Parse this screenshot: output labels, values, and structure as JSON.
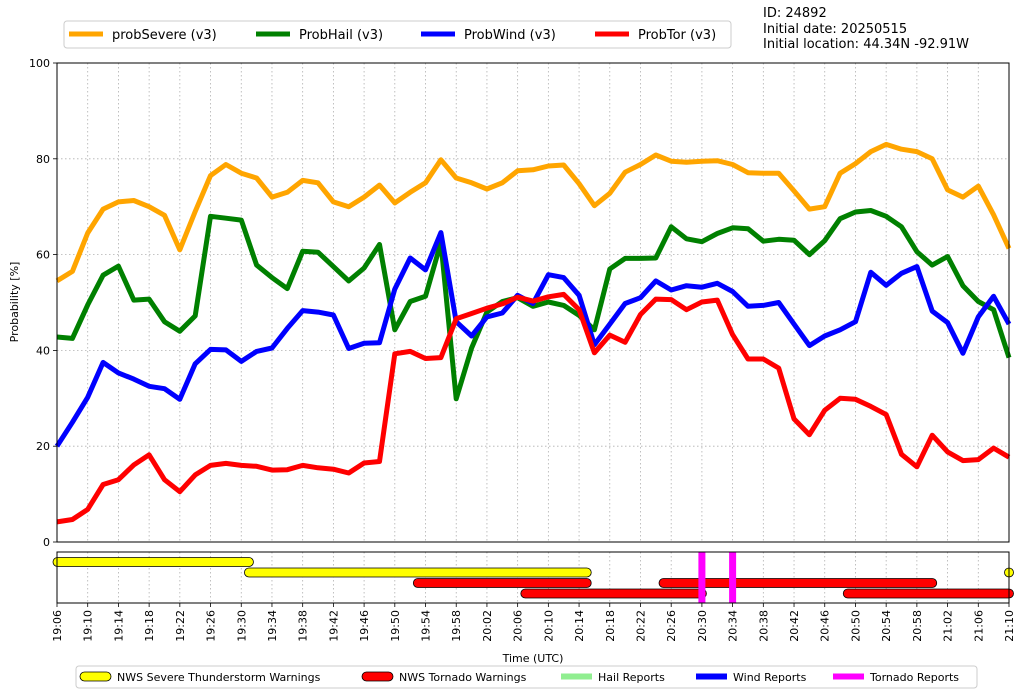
{
  "info": {
    "id_line": "ID: 24892",
    "date_line": "Initial date: 20250515",
    "location_line": "Initial location: 44.34N -92.91W"
  },
  "chart_data": {
    "type": "line",
    "xlabel": "Time (UTC)",
    "ylabel": "Probability [%]",
    "ylim": [
      0,
      100
    ],
    "yticks": [
      0,
      20,
      40,
      60,
      80,
      100
    ],
    "grid": true,
    "legend_position": "top-left",
    "x_start": "19:06",
    "x_end": "21:10",
    "xticks": [
      "19:06",
      "19:10",
      "19:14",
      "19:18",
      "19:22",
      "19:26",
      "19:30",
      "19:34",
      "19:38",
      "19:42",
      "19:46",
      "19:50",
      "19:54",
      "19:58",
      "20:02",
      "20:06",
      "20:10",
      "20:14",
      "20:18",
      "20:22",
      "20:26",
      "20:30",
      "20:34",
      "20:38",
      "20:42",
      "20:46",
      "20:50",
      "20:54",
      "20:58",
      "21:02",
      "21:06",
      "21:10"
    ],
    "x": [
      "19:06",
      "19:08",
      "19:10",
      "19:12",
      "19:14",
      "19:16",
      "19:18",
      "19:20",
      "19:22",
      "19:24",
      "19:26",
      "19:28",
      "19:30",
      "19:32",
      "19:34",
      "19:36",
      "19:38",
      "19:40",
      "19:42",
      "19:44",
      "19:46",
      "19:48",
      "19:50",
      "19:52",
      "19:54",
      "19:56",
      "19:58",
      "20:00",
      "20:02",
      "20:04",
      "20:06",
      "20:08",
      "20:10",
      "20:12",
      "20:14",
      "20:16",
      "20:18",
      "20:20",
      "20:22",
      "20:24",
      "20:26",
      "20:28",
      "20:30",
      "20:32",
      "20:34",
      "20:36",
      "20:38",
      "20:40",
      "20:42",
      "20:44",
      "20:46",
      "20:48",
      "20:50",
      "20:52",
      "20:54",
      "20:56",
      "20:58",
      "21:00",
      "21:02",
      "21:04",
      "21:06",
      "21:08",
      "21:10"
    ],
    "series": [
      {
        "name": "probSevere (v3)",
        "color": "#FFA500",
        "values": [
          54.5,
          56.5,
          64.5,
          69.5,
          71,
          71.3,
          70,
          68.2,
          61,
          69,
          76.5,
          78.8,
          77,
          76,
          72,
          73,
          75.5,
          75,
          71,
          70,
          72,
          74.5,
          70.8,
          73,
          75,
          79.8,
          76,
          75,
          73.7,
          75,
          77.5,
          77.7,
          78.5,
          78.7,
          74.8,
          70.2,
          72.8,
          77.2,
          78.8,
          80.8,
          79.5,
          79.3,
          79.5,
          79.6,
          78.8,
          77.1,
          77,
          77,
          73.3,
          69.5,
          70,
          77,
          79,
          81.5,
          83,
          82,
          81.5,
          80,
          73.5,
          72,
          74.3,
          68.3,
          61.3
        ]
      },
      {
        "name": "ProbHail (v3)",
        "color": "#008000",
        "values": [
          42.8,
          42.5,
          49.5,
          55.7,
          57.6,
          50.5,
          50.7,
          46,
          44,
          47.2,
          68,
          67.6,
          67.2,
          57.8,
          55.2,
          52.9,
          60.7,
          60.5,
          57.5,
          54.5,
          57.2,
          62.1,
          44.3,
          50.2,
          51.3,
          62.5,
          29.9,
          40.5,
          48,
          50.2,
          51,
          49.2,
          50.1,
          49.4,
          47.3,
          44.3,
          57,
          59.2,
          59.2,
          59.3,
          65.8,
          63.3,
          62.7,
          64.4,
          65.6,
          65.4,
          62.8,
          63.2,
          63,
          60,
          62.9,
          67.5,
          68.9,
          69.2,
          68,
          65.8,
          60.6,
          57.8,
          59.6,
          53.5,
          50.2,
          48.5,
          38.5
        ]
      },
      {
        "name": "ProbWind (v3)",
        "color": "#0000FF",
        "values": [
          20,
          25,
          30.2,
          37.5,
          35.3,
          34,
          32.5,
          32,
          29.8,
          37.2,
          40.2,
          40.1,
          37.7,
          39.8,
          40.5,
          44.6,
          48.3,
          48,
          47.4,
          40.4,
          41.5,
          41.6,
          52.8,
          59.3,
          56.8,
          64.6,
          46,
          43,
          47,
          47.8,
          51.5,
          49.8,
          55.8,
          55.2,
          51.5,
          41.2,
          45.5,
          49.8,
          51,
          54.5,
          52.6,
          53.5,
          53.2,
          54,
          52.3,
          49.2,
          49.4,
          50,
          45.5,
          41,
          43,
          44.3,
          46,
          56.3,
          53.6,
          56.1,
          57.5,
          48.2,
          45.8,
          39.4,
          47,
          51.3,
          45.5
        ]
      },
      {
        "name": "ProbTor (v3)",
        "color": "#FF0000",
        "values": [
          4.2,
          4.7,
          6.8,
          12,
          13,
          16.1,
          18.2,
          13,
          10.5,
          14,
          16,
          16.4,
          16,
          15.8,
          15,
          15.1,
          16,
          15.5,
          15.2,
          14.4,
          16.5,
          16.8,
          39.3,
          39.8,
          38.3,
          38.5,
          46.6,
          47.7,
          48.8,
          49.7,
          51.1,
          50.3,
          51.2,
          51.7,
          48.5,
          39.5,
          43.2,
          41.7,
          47.5,
          50.7,
          50.6,
          48.5,
          50.1,
          50.5,
          43.3,
          38.2,
          38.2,
          36.3,
          25.7,
          22.4,
          27.5,
          30,
          29.8,
          28.3,
          26.6,
          18.3,
          15.7,
          22.3,
          18.8,
          17,
          17.2,
          19.6,
          17.7
        ]
      }
    ],
    "bottom_axis": {
      "rows": 4,
      "legend": [
        {
          "label": "NWS Severe Thunderstorm Warnings",
          "color": "#FFFF00",
          "shape": "capsule"
        },
        {
          "label": "NWS Tornado Warnings",
          "color": "#FF0000",
          "shape": "capsule"
        },
        {
          "label": "Hail Reports",
          "color": "#90EE90",
          "shape": "line"
        },
        {
          "label": "Wind Reports",
          "color": "#0000FF",
          "shape": "line"
        },
        {
          "label": "Tornado Reports",
          "color": "#FF00FF",
          "shape": "line"
        }
      ],
      "warnings": [
        {
          "kind": "severe",
          "row": 0,
          "start": "19:06",
          "end": "19:31"
        },
        {
          "kind": "severe",
          "row": 1,
          "start": "19:31",
          "end": "20:15"
        },
        {
          "kind": "tornado",
          "row": 2,
          "start": "19:53",
          "end": "20:15"
        },
        {
          "kind": "tornado",
          "row": 3,
          "start": "20:07",
          "end": "20:30"
        },
        {
          "kind": "tornado",
          "row": 2,
          "start": "20:25",
          "end": "21:00"
        },
        {
          "kind": "tornado",
          "row": 3,
          "start": "20:49",
          "end": "21:10"
        },
        {
          "kind": "severe",
          "row": 1,
          "start": "21:10",
          "end": "21:10"
        }
      ],
      "reports": [
        {
          "kind": "tornado",
          "time": "20:30"
        },
        {
          "kind": "tornado",
          "time": "20:34"
        }
      ]
    }
  }
}
